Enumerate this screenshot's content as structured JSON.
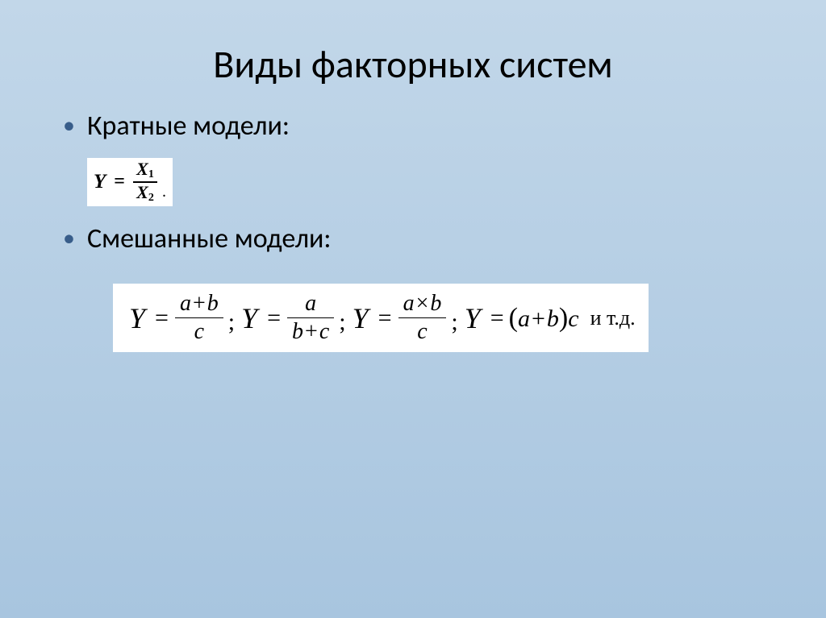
{
  "slide": {
    "title": "Виды факторных систем",
    "background_gradient_top": "#c2d7e9",
    "background_gradient_bottom": "#a8c5df",
    "bullet_color": "#385d8a",
    "text_color": "#000000",
    "title_fontsize": 48,
    "body_fontsize": 34,
    "bullets": [
      {
        "label": "Кратные  модели:"
      },
      {
        "label": "Смешанные модели:"
      }
    ]
  },
  "formula1": {
    "background": "#ffffff",
    "lhs": "Y",
    "eq": "=",
    "numerator": "X",
    "numerator_sub": "1",
    "denominator": "X",
    "denominator_sub": "2",
    "trailing": "."
  },
  "formula2": {
    "background": "#ffffff",
    "expressions": [
      {
        "lhs": "Y",
        "num": "a + b",
        "den": "c"
      },
      {
        "lhs": "Y",
        "num": "a",
        "den": "b + c"
      },
      {
        "lhs": "Y",
        "num": "a × b",
        "den": "c"
      },
      {
        "lhs": "Y",
        "plain": "(a + b)c"
      }
    ],
    "separator": ";",
    "trailing_text": "и т.д."
  }
}
